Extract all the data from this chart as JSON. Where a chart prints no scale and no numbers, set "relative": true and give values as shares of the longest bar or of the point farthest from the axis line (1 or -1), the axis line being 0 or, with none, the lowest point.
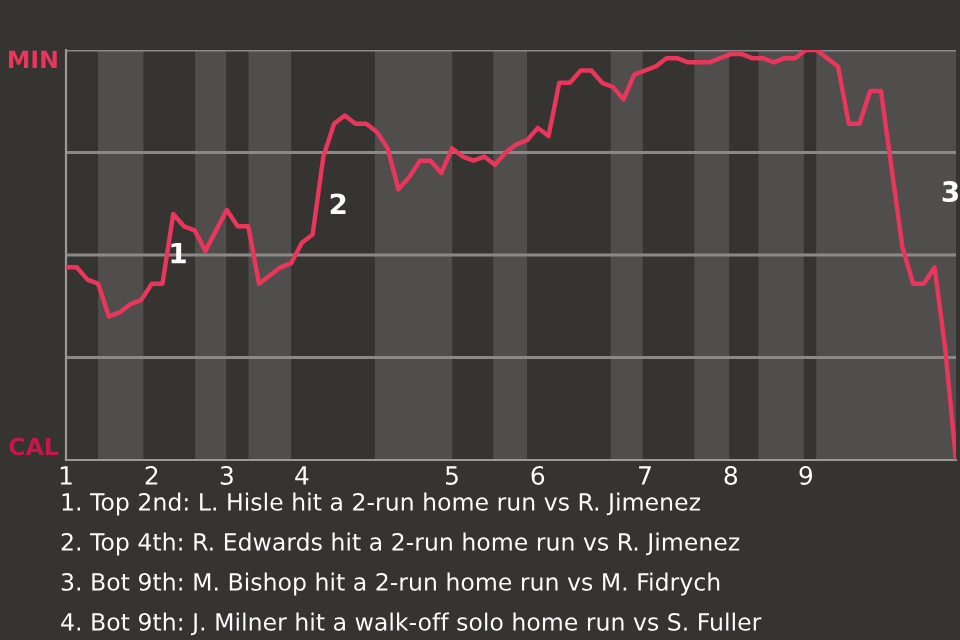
{
  "chart_data": {
    "type": "line",
    "categories": [
      "1",
      null,
      null,
      null,
      null,
      null,
      null,
      null,
      "2",
      null,
      null,
      null,
      null,
      null,
      null,
      "3",
      null,
      null,
      null,
      null,
      null,
      null,
      "4",
      null,
      null,
      null,
      null,
      null,
      null,
      null,
      null,
      null,
      null,
      null,
      null,
      null,
      "5",
      null,
      null,
      null,
      null,
      null,
      null,
      null,
      "6",
      null,
      null,
      null,
      null,
      null,
      null,
      null,
      null,
      null,
      "7",
      null,
      null,
      null,
      null,
      null,
      null,
      null,
      "8",
      null,
      null,
      null,
      null,
      null,
      null,
      "9",
      null,
      null,
      null,
      null,
      null,
      null,
      null,
      null,
      null,
      null,
      null,
      null,
      null,
      null
    ],
    "relative": true,
    "series": [
      {
        "color": "#e8365d",
        "values": [
          0.47,
          0.47,
          0.44,
          0.43,
          0.35,
          0.36,
          0.38,
          0.39,
          0.43,
          0.43,
          0.6,
          0.57,
          0.56,
          0.51,
          0.56,
          0.61,
          0.57,
          0.57,
          0.43,
          0.45,
          0.47,
          0.48,
          0.53,
          0.55,
          0.74,
          0.82,
          0.84,
          0.82,
          0.82,
          0.8,
          0.76,
          0.66,
          0.69,
          0.73,
          0.73,
          0.7,
          0.76,
          0.74,
          0.73,
          0.74,
          0.72,
          0.75,
          0.77,
          0.78,
          0.81,
          0.79,
          0.92,
          0.92,
          0.95,
          0.95,
          0.92,
          0.91,
          0.88,
          0.94,
          0.95,
          0.96,
          0.98,
          0.98,
          0.97,
          0.97,
          0.97,
          0.98,
          0.99,
          0.99,
          0.98,
          0.98,
          0.97,
          0.98,
          0.98,
          1.0,
          1.0,
          0.98,
          0.96,
          0.82,
          0.82,
          0.9,
          0.9,
          0.71,
          0.52,
          0.43,
          0.43,
          0.47,
          0.27,
          0.0
        ]
      }
    ],
    "grid": "y",
    "marker": "none",
    "line_style": "solid",
    "annotations": [
      "MIN",
      "CAL",
      "1",
      "2",
      "3",
      "1. Top 2nd: L. Hisle hit a 2-run home run vs R. Jimenez",
      "2. Top 4th: R. Edwards hit a 2-run home run vs R. Jimenez",
      "3. Bot 9th: M. Bishop hit a 2-run home run vs M. Fidrych",
      "4. Bot 9th: J. Milner hit a walk-off solo home run vs S. Fuller"
    ]
  }
}
